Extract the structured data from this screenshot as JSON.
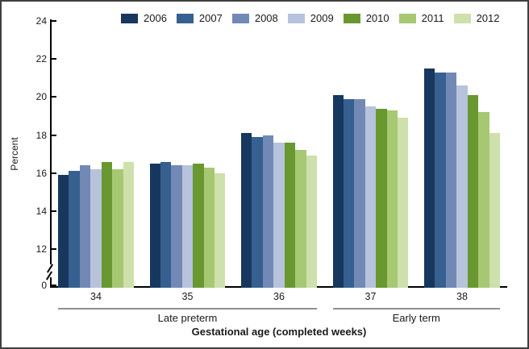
{
  "chart_data": {
    "type": "bar",
    "title": "",
    "xlabel": "Gestational age (completed weeks)",
    "ylabel": "Percent",
    "categories": [
      "34",
      "35",
      "36",
      "37",
      "38"
    ],
    "series": [
      {
        "name": "2006",
        "color": "#17375E",
        "values": [
          15.9,
          16.5,
          18.1,
          20.1,
          21.5
        ]
      },
      {
        "name": "2007",
        "color": "#36608F",
        "values": [
          16.1,
          16.6,
          17.9,
          19.9,
          21.3
        ]
      },
      {
        "name": "2008",
        "color": "#7289B5",
        "values": [
          16.4,
          16.4,
          18.0,
          19.9,
          21.3
        ]
      },
      {
        "name": "2009",
        "color": "#B7C3DC",
        "values": [
          16.2,
          16.4,
          17.6,
          19.5,
          20.6
        ]
      },
      {
        "name": "2010",
        "color": "#68982F",
        "values": [
          16.6,
          16.5,
          17.6,
          19.4,
          20.1
        ]
      },
      {
        "name": "2011",
        "color": "#A7C873",
        "values": [
          16.2,
          16.3,
          17.2,
          19.3,
          19.2
        ]
      },
      {
        "name": "2012",
        "color": "#CEE0AB",
        "values": [
          16.6,
          16.0,
          16.9,
          18.9,
          18.1
        ]
      }
    ],
    "y_ticks": [
      0,
      12,
      14,
      16,
      18,
      20,
      22,
      24
    ],
    "ylim": [
      0,
      24
    ],
    "axis_break_between": [
      0,
      12
    ],
    "grid": false,
    "legend_position": "top",
    "sections": [
      {
        "label": "Late preterm",
        "start_category_index": 0,
        "end_category_index": 2
      },
      {
        "label": "Early term",
        "start_category_index": 3,
        "end_category_index": 4
      }
    ]
  }
}
